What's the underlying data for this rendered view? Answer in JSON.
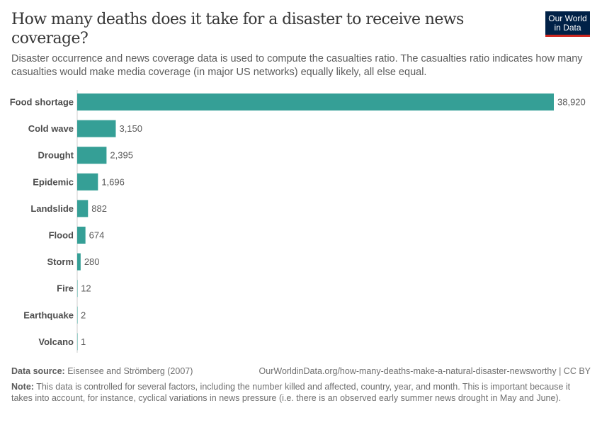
{
  "title": "How many deaths does it take for a disaster to receive news coverage?",
  "subtitle": "Disaster occurrence and news coverage data is used to compute the casualties ratio. The casualties ratio indicates how many casualties would make media coverage (in major US networks) equally likely, all else equal.",
  "logo": "Our World in Data",
  "footer": {
    "source_label": "Data source:",
    "source": "Eisensee and Strömberg (2007)",
    "url": "OurWorldinData.org/how-many-deaths-make-a-natural-disaster-newsworthy | CC BY",
    "note_label": "Note:",
    "note": "This data is controlled for several factors, including the number killed and affected, country, year, and month. This is important because it takes into account, for instance, cyclical variations in news pressure (i.e. there is an observed early summer news drought in May and June)."
  },
  "chart_data": {
    "type": "bar",
    "orientation": "horizontal",
    "bar_color": "#359f96",
    "categories": [
      "Food shortage",
      "Cold wave",
      "Drought",
      "Epidemic",
      "Landslide",
      "Flood",
      "Storm",
      "Fire",
      "Earthquake",
      "Volcano"
    ],
    "values": [
      38920,
      3150,
      2395,
      1696,
      882,
      674,
      280,
      12,
      2,
      1
    ],
    "value_labels": [
      "38,920",
      "3,150",
      "2,395",
      "1,696",
      "882",
      "674",
      "280",
      "12",
      "2",
      "1"
    ]
  }
}
